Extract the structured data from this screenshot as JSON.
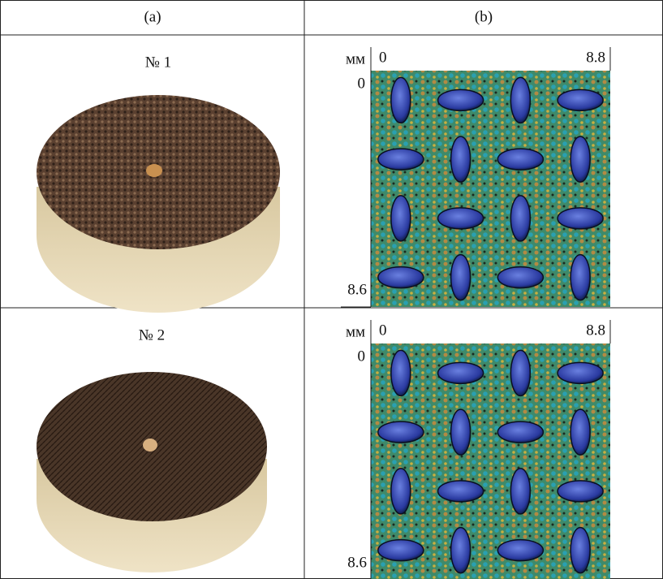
{
  "table": {
    "headers": [
      "(a)",
      "(b)"
    ],
    "rows": [
      {
        "label": "№ 1",
        "scan": {
          "unit": "мм",
          "x_start": 0,
          "x_end": 8.8,
          "y_start": 0,
          "y_end": 8.6
        }
      },
      {
        "label": "№ 2",
        "scan": {
          "unit": "мм",
          "x_start": 0,
          "x_end": 8.8,
          "y_start": 0,
          "y_end": 8.6
        }
      }
    ]
  }
}
